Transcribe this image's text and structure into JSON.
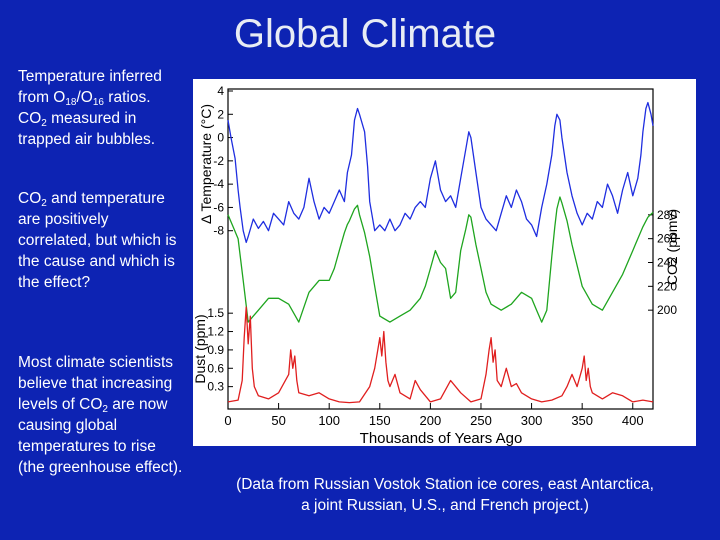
{
  "slide": {
    "title": "Global Climate",
    "block1": {
      "text_a": "Temperature inferred from O",
      "sub_a": "18",
      "text_b": "/O",
      "sub_b": "16",
      "text_c": " ratios. CO",
      "sub_c": "2",
      "text_d": " measured in trapped air bubbles."
    },
    "block2": {
      "text_a": "CO",
      "sub_a": "2",
      "text_b": " and temperature are positively correlated, but which is the cause and which is the effect?"
    },
    "block3": {
      "text_a": "Most climate scientists believe that increasing levels of CO",
      "sub_a": "2",
      "text_b": " are now causing global temperatures to rise (the greenhouse effect)."
    },
    "credit": {
      "line1": "(Data from Russian Vostok Station ice cores, east Antarctica,",
      "line2": "a joint Russian, U.S., and French project.)"
    }
  },
  "chart_data": {
    "type": "line",
    "xlabel": "Thousands of Years Ago",
    "xlim": [
      0,
      420
    ],
    "x_ticks": [
      0,
      50,
      100,
      150,
      200,
      250,
      300,
      350,
      400
    ],
    "x_reversed": false,
    "panels": [
      {
        "name": "temperature",
        "ylabel": "Δ Temperature (°C)",
        "ylim": [
          -10,
          4
        ],
        "ticks": [
          4,
          2,
          0,
          -2,
          -4,
          -6,
          -8
        ],
        "tick_side": "left",
        "color": "#1f2ee0",
        "x": [
          0,
          3,
          7,
          10,
          12,
          15,
          18,
          20,
          25,
          30,
          35,
          40,
          45,
          50,
          55,
          60,
          65,
          70,
          75,
          80,
          85,
          90,
          95,
          100,
          105,
          110,
          115,
          118,
          122,
          125,
          128,
          130,
          135,
          138,
          140,
          145,
          150,
          155,
          160,
          165,
          170,
          175,
          180,
          185,
          190,
          195,
          200,
          205,
          210,
          215,
          220,
          225,
          230,
          235,
          238,
          240,
          245,
          250,
          255,
          260,
          265,
          270,
          275,
          280,
          285,
          290,
          295,
          300,
          305,
          310,
          315,
          320,
          323,
          325,
          328,
          330,
          335,
          340,
          345,
          350,
          355,
          360,
          365,
          370,
          375,
          380,
          385,
          390,
          395,
          400,
          405,
          408,
          410,
          413,
          415,
          418,
          420
        ],
        "values": [
          1.5,
          0.0,
          -1.8,
          -4.5,
          -6.0,
          -8.0,
          -9.0,
          -8.5,
          -7.0,
          -7.8,
          -7.2,
          -8.0,
          -6.5,
          -7.0,
          -7.5,
          -5.5,
          -6.5,
          -7.0,
          -6.0,
          -3.5,
          -5.5,
          -7.0,
          -6.0,
          -6.5,
          -5.5,
          -4.5,
          -5.5,
          -3.0,
          -1.5,
          1.5,
          2.5,
          2.0,
          0.5,
          -2.5,
          -5.5,
          -8.0,
          -7.5,
          -8.0,
          -7.0,
          -8.0,
          -7.5,
          -6.5,
          -7.0,
          -6.0,
          -5.5,
          -6.0,
          -3.5,
          -2.0,
          -4.5,
          -5.5,
          -5.0,
          -6.0,
          -3.5,
          -1.0,
          0.5,
          0.0,
          -3.0,
          -6.0,
          -7.0,
          -7.5,
          -8.0,
          -6.5,
          -5.0,
          -6.0,
          -4.5,
          -5.5,
          -7.0,
          -7.5,
          -8.5,
          -6.0,
          -4.0,
          -1.5,
          1.0,
          2.0,
          1.5,
          0.0,
          -3.0,
          -5.0,
          -6.5,
          -7.5,
          -6.5,
          -7.0,
          -5.5,
          -6.0,
          -4.0,
          -5.0,
          -6.5,
          -4.5,
          -3.0,
          -5.0,
          -3.5,
          -1.5,
          0.5,
          2.5,
          3.0,
          2.0,
          1.0
        ]
      },
      {
        "name": "co2",
        "ylabel": "CO2 (ppmv)",
        "ylim": [
          180,
          300
        ],
        "ticks": [
          280,
          260,
          240,
          220,
          200
        ],
        "tick_side": "right",
        "color": "#1fa51f",
        "x": [
          0,
          5,
          10,
          15,
          20,
          25,
          30,
          40,
          50,
          60,
          70,
          80,
          90,
          100,
          105,
          110,
          115,
          118,
          120,
          125,
          128,
          130,
          135,
          140,
          145,
          150,
          160,
          170,
          180,
          190,
          195,
          200,
          205,
          210,
          215,
          220,
          225,
          230,
          235,
          238,
          240,
          245,
          250,
          255,
          260,
          270,
          280,
          290,
          300,
          305,
          310,
          315,
          320,
          323,
          325,
          328,
          330,
          335,
          340,
          350,
          360,
          370,
          380,
          390,
          400,
          405,
          410,
          415,
          420
        ],
        "values": [
          280,
          270,
          260,
          225,
          190,
          195,
          200,
          210,
          210,
          205,
          190,
          215,
          225,
          225,
          235,
          250,
          265,
          272,
          275,
          285,
          288,
          280,
          265,
          245,
          220,
          195,
          190,
          195,
          200,
          210,
          220,
          235,
          250,
          240,
          235,
          210,
          215,
          250,
          268,
          280,
          278,
          255,
          235,
          215,
          205,
          200,
          205,
          215,
          210,
          200,
          190,
          200,
          245,
          270,
          285,
          295,
          290,
          275,
          255,
          220,
          205,
          200,
          215,
          230,
          250,
          260,
          270,
          278,
          282
        ]
      },
      {
        "name": "dust",
        "ylabel": "Dust (ppm)",
        "ylim": [
          0,
          1.65
        ],
        "ticks": [
          1.5,
          1.2,
          0.9,
          0.6,
          0.3
        ],
        "tick_side": "left",
        "color": "#e01f1f",
        "x": [
          0,
          10,
          14,
          16,
          18,
          20,
          22,
          24,
          26,
          30,
          40,
          50,
          60,
          62,
          64,
          66,
          68,
          70,
          80,
          90,
          100,
          110,
          120,
          130,
          140,
          145,
          148,
          150,
          152,
          154,
          156,
          158,
          160,
          165,
          170,
          180,
          185,
          190,
          200,
          210,
          220,
          230,
          240,
          250,
          255,
          258,
          260,
          262,
          264,
          266,
          270,
          275,
          280,
          285,
          290,
          300,
          310,
          320,
          330,
          335,
          340,
          345,
          350,
          352,
          354,
          356,
          358,
          360,
          370,
          380,
          390,
          400,
          410,
          420
        ],
        "values": [
          0.05,
          0.08,
          0.4,
          1.1,
          1.6,
          1.0,
          1.45,
          0.6,
          0.3,
          0.15,
          0.1,
          0.2,
          0.5,
          0.9,
          0.6,
          0.8,
          0.4,
          0.2,
          0.15,
          0.2,
          0.1,
          0.05,
          0.04,
          0.05,
          0.3,
          0.6,
          0.9,
          1.1,
          0.8,
          1.2,
          0.7,
          0.4,
          0.3,
          0.5,
          0.2,
          0.1,
          0.4,
          0.25,
          0.05,
          0.1,
          0.4,
          0.2,
          0.05,
          0.1,
          0.5,
          0.9,
          1.1,
          0.7,
          0.9,
          0.4,
          0.3,
          0.6,
          0.3,
          0.35,
          0.2,
          0.1,
          0.05,
          0.08,
          0.15,
          0.3,
          0.5,
          0.3,
          0.6,
          0.8,
          0.4,
          0.6,
          0.3,
          0.2,
          0.1,
          0.2,
          0.15,
          0.05,
          0.08,
          0.05
        ]
      }
    ]
  }
}
